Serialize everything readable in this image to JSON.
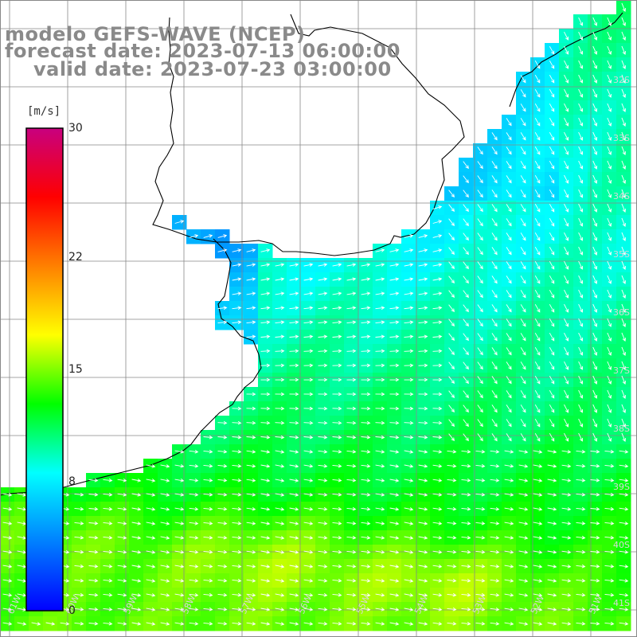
{
  "title": {
    "line1": "modelo GEFS-WAVE (NCEP)",
    "line2": "forecast date: 2023-07-13 06:00:00",
    "line3": "valid date: 2023-07-23 03:00:00"
  },
  "colorbar": {
    "unit": "[m/s]",
    "ticks": [
      "30",
      "22",
      "15",
      "8",
      "0"
    ],
    "tick_values": [
      30,
      22,
      15,
      8,
      0
    ],
    "range": [
      0,
      30
    ],
    "colors": [
      "#0000ff",
      "#0080ff",
      "#00ffff",
      "#00ff00",
      "#ffff00",
      "#ff8000",
      "#ff0000",
      "#c8007f"
    ]
  },
  "axes": {
    "lon_labels": [
      "61W",
      "60W",
      "59W",
      "58W",
      "57W",
      "56W",
      "55W",
      "54W",
      "53W",
      "52W",
      "51W",
      "50W"
    ],
    "lat_labels": [
      "32S",
      "33S",
      "34S",
      "35S",
      "36S",
      "37S",
      "38S",
      "39S",
      "40S",
      "41S"
    ]
  },
  "legend_colors": {
    "land": "#ffffff",
    "grid": "#888888",
    "coast": "#000000",
    "arrow": "#ffffff"
  }
}
